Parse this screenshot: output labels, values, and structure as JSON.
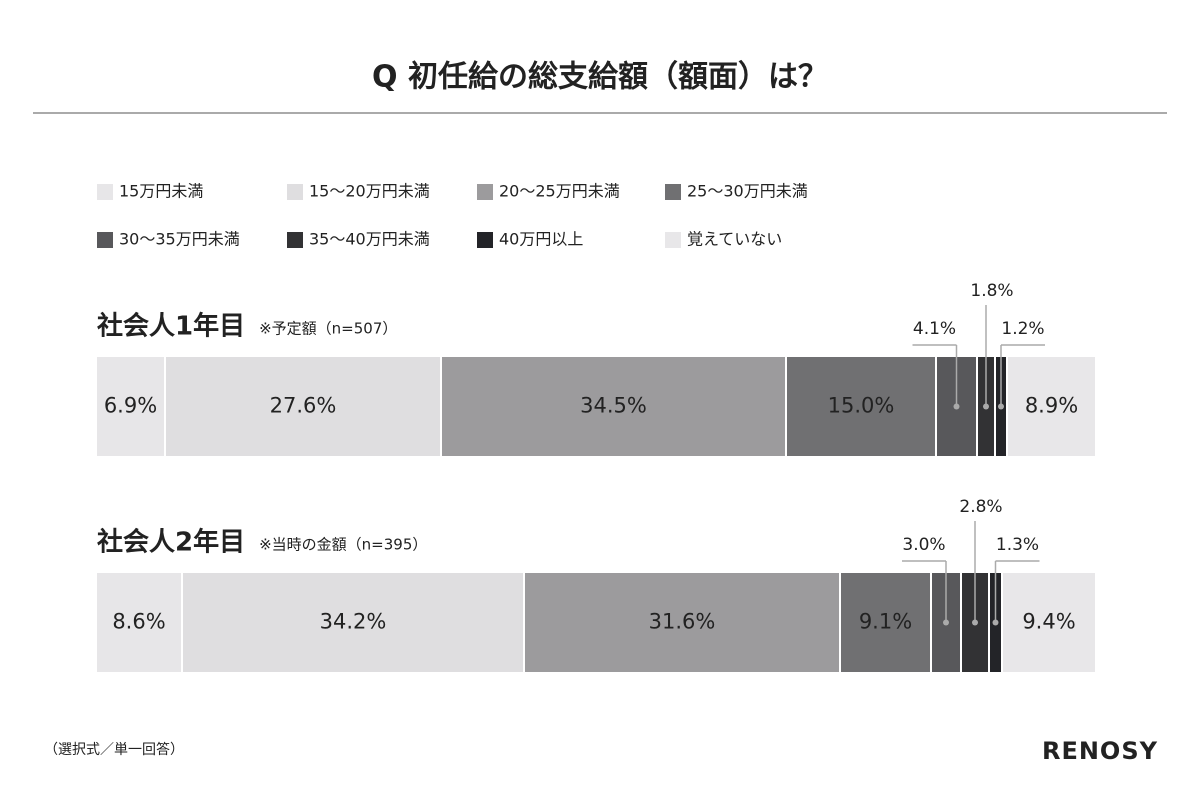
{
  "chart_data": {
    "type": "bar",
    "orientation": "horizontal",
    "stacked": true,
    "title": "Q 初任給の総支給額（額面）は？",
    "categories": [
      "社会人1年目",
      "社会人2年目"
    ],
    "category_notes": [
      "※予定額（n=507）",
      "※当時の金額（n=395）"
    ],
    "series": [
      {
        "name": "15万円未満",
        "color": "#e7e6e8",
        "values": [
          6.9,
          8.6
        ],
        "value_labels": [
          "6.9%",
          "8.6%"
        ]
      },
      {
        "name": "15〜20万円未満",
        "color": "#dfdee0",
        "values": [
          27.6,
          34.2
        ],
        "value_labels": [
          "27.6%",
          "34.2%"
        ]
      },
      {
        "name": "20〜25万円未満",
        "color": "#9c9b9d",
        "values": [
          34.5,
          31.6
        ],
        "value_labels": [
          "34.5%",
          "31.6%"
        ]
      },
      {
        "name": "25〜30万円未満",
        "color": "#707072",
        "values": [
          15.0,
          9.1
        ],
        "value_labels": [
          "15.0%",
          "9.1%"
        ]
      },
      {
        "name": "30〜35万円未満",
        "color": "#58585b",
        "values": [
          4.1,
          3.0
        ],
        "value_labels": [
          "4.1%",
          "3.0%"
        ]
      },
      {
        "name": "35〜40万円未満",
        "color": "#323234",
        "values": [
          1.8,
          2.8
        ],
        "value_labels": [
          "1.8%",
          "2.8%"
        ]
      },
      {
        "name": "40万円以上",
        "color": "#232428",
        "values": [
          1.2,
          1.3
        ],
        "value_labels": [
          "1.2%",
          "1.3%"
        ]
      },
      {
        "name": "覚えていない",
        "color": "#e8e7e9",
        "values": [
          8.9,
          9.4
        ],
        "value_labels": [
          "8.9%",
          "9.4%"
        ]
      }
    ],
    "footnote": "（選択式／単一回答）",
    "logo": "RENOSY"
  }
}
